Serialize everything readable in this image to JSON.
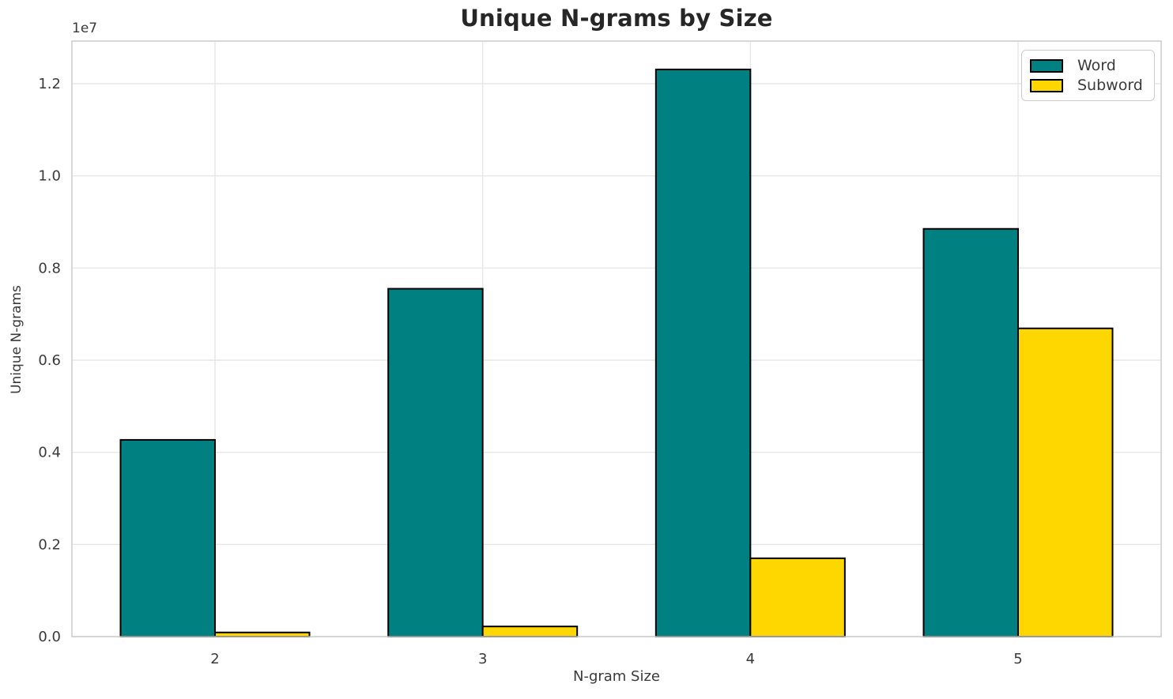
{
  "figure": {
    "title": "Unique N-grams by Size",
    "xlabel": "N-gram Size",
    "ylabel": "Unique N-grams",
    "offset_text": "1e7"
  },
  "legend": {
    "position": "upper right",
    "items": [
      {
        "label": "Word",
        "color": "#008080"
      },
      {
        "label": "Subword",
        "color": "#FFD700"
      }
    ]
  },
  "chart_data": {
    "type": "bar",
    "title": "Unique N-grams by Size",
    "xlabel": "N-gram Size",
    "ylabel": "Unique N-grams",
    "categories": [
      "2",
      "3",
      "4",
      "5"
    ],
    "series": [
      {
        "name": "Word",
        "color": "#008080",
        "values": [
          4270000,
          7550000,
          12310000,
          8850000
        ]
      },
      {
        "name": "Subword",
        "color": "#FFD700",
        "values": [
          90000,
          220000,
          1700000,
          6690000
        ]
      }
    ],
    "ylim": [
      0,
      12930000
    ],
    "yticks": {
      "values": [
        0,
        2000000,
        4000000,
        6000000,
        8000000,
        10000000,
        12000000
      ],
      "labels": [
        "0.0",
        "0.2",
        "0.4",
        "0.6",
        "0.8",
        "1.0",
        "1.2"
      ]
    },
    "y_offset_label": "1e7",
    "grid": true,
    "legend_position": "upper right",
    "bar_edge_color": "#000000",
    "styles": {
      "grid_color": "#e7e7e7",
      "spine_color": "#cccccc",
      "tick_text_color": "#3a3a3a",
      "title_color": "#262626",
      "background": "#ffffff"
    }
  }
}
